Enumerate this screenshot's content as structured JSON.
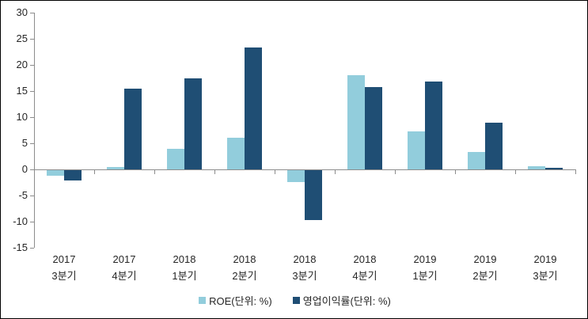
{
  "chart_data": {
    "type": "bar",
    "title": "",
    "xlabel": "",
    "ylabel": "",
    "categories": [
      "2017 3분기",
      "2017 4분기",
      "2018 1분기",
      "2018 2분기",
      "2018 3분기",
      "2018 4분기",
      "2019 1분기",
      "2019 2분기",
      "2019 3분기"
    ],
    "series": [
      {
        "name": "ROE(단위: %)",
        "color": "#92CDDC",
        "values": [
          -1.0,
          0.5,
          3.9,
          6.0,
          -2.2,
          18.0,
          7.3,
          3.4,
          0.6
        ]
      },
      {
        "name": "영업이익률(단위: %)",
        "color": "#1F4E74",
        "values": [
          -1.9,
          15.4,
          17.4,
          23.3,
          -9.6,
          15.8,
          16.8,
          8.9,
          0.3
        ]
      }
    ],
    "ylim": [
      -15,
      30
    ],
    "yticks": [
      30,
      25,
      20,
      15,
      10,
      5,
      0,
      -5,
      -10,
      -15
    ],
    "grid": false,
    "legend_position": "bottom",
    "colors": {
      "axis": "#8c8c8c",
      "label": "#262626",
      "background": "#ffffff",
      "border": "#000000"
    }
  }
}
